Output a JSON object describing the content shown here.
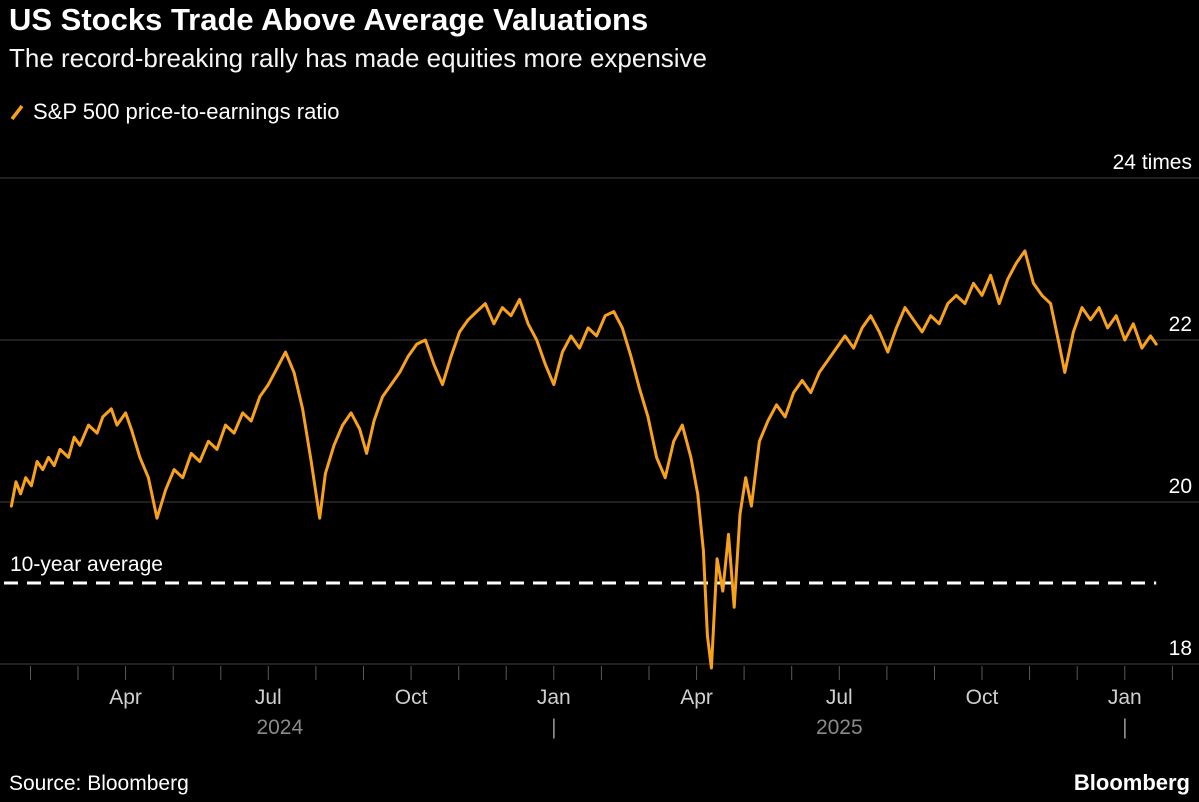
{
  "footer": {
    "brand": "Bloomberg"
  },
  "chart_data": {
    "type": "line",
    "title": "US Stocks Trade Above Average Valuations",
    "subtitle": "The record-breaking rally has made equities more expensive",
    "source": "Source: Bloomberg",
    "grid": "horizontal",
    "legend_position": "top-left",
    "x_domain": [
      2024.03,
      2026.13
    ],
    "x_ticks": [
      {
        "t": 2024.25,
        "label": "Apr"
      },
      {
        "t": 2024.5,
        "label": "Jul"
      },
      {
        "t": 2024.75,
        "label": "Oct"
      },
      {
        "t": 2025.0,
        "label": "Jan"
      },
      {
        "t": 2025.25,
        "label": "Apr"
      },
      {
        "t": 2025.5,
        "label": "Jul"
      },
      {
        "t": 2025.75,
        "label": "Oct"
      },
      {
        "t": 2026.0,
        "label": "Jan"
      }
    ],
    "year_row": [
      {
        "t": 2024.52,
        "label": "2024"
      },
      {
        "t": 2025.0,
        "label": "|"
      },
      {
        "t": 2025.5,
        "label": "2025"
      },
      {
        "t": 2026.0,
        "label": "|"
      }
    ],
    "y_axis": {
      "gridlines": [
        {
          "value": 24,
          "label": "24 times"
        },
        {
          "value": 22,
          "label": "22"
        },
        {
          "value": 20,
          "label": "20"
        },
        {
          "value": 18,
          "label": "18"
        }
      ]
    },
    "reference_line": {
      "value": 19.0,
      "label": "10-year average",
      "style": "dashed",
      "color": "#ffffff"
    },
    "colors": {
      "series_orange": "#F8A11B",
      "gridline": "#3f3f3f",
      "axis_tick": "#5a5a5a",
      "month_label": "#cfcfcf",
      "year_label": "#8a8a8a"
    },
    "series": [
      {
        "name": "S&P 500 price-to-earnings ratio",
        "color": "#F8A11B",
        "points": [
          [
            2024.05,
            19.95
          ],
          [
            2024.058,
            20.25
          ],
          [
            2024.066,
            20.1
          ],
          [
            2024.075,
            20.3
          ],
          [
            2024.085,
            20.2
          ],
          [
            2024.095,
            20.5
          ],
          [
            2024.105,
            20.4
          ],
          [
            2024.115,
            20.55
          ],
          [
            2024.125,
            20.45
          ],
          [
            2024.135,
            20.65
          ],
          [
            2024.15,
            20.55
          ],
          [
            2024.16,
            20.8
          ],
          [
            2024.17,
            20.7
          ],
          [
            2024.185,
            20.95
          ],
          [
            2024.2,
            20.85
          ],
          [
            2024.21,
            21.05
          ],
          [
            2024.225,
            21.15
          ],
          [
            2024.235,
            20.95
          ],
          [
            2024.25,
            21.1
          ],
          [
            2024.26,
            20.9
          ],
          [
            2024.275,
            20.55
          ],
          [
            2024.29,
            20.3
          ],
          [
            2024.305,
            19.8
          ],
          [
            2024.32,
            20.15
          ],
          [
            2024.335,
            20.4
          ],
          [
            2024.35,
            20.3
          ],
          [
            2024.365,
            20.6
          ],
          [
            2024.38,
            20.5
          ],
          [
            2024.395,
            20.75
          ],
          [
            2024.41,
            20.65
          ],
          [
            2024.425,
            20.95
          ],
          [
            2024.44,
            20.85
          ],
          [
            2024.455,
            21.1
          ],
          [
            2024.47,
            21.0
          ],
          [
            2024.485,
            21.3
          ],
          [
            2024.5,
            21.45
          ],
          [
            2024.515,
            21.65
          ],
          [
            2024.53,
            21.85
          ],
          [
            2024.545,
            21.6
          ],
          [
            2024.56,
            21.15
          ],
          [
            2024.575,
            20.5
          ],
          [
            2024.59,
            19.8
          ],
          [
            2024.6,
            20.35
          ],
          [
            2024.615,
            20.7
          ],
          [
            2024.63,
            20.95
          ],
          [
            2024.645,
            21.1
          ],
          [
            2024.66,
            20.9
          ],
          [
            2024.672,
            20.6
          ],
          [
            2024.685,
            21.0
          ],
          [
            2024.7,
            21.3
          ],
          [
            2024.715,
            21.45
          ],
          [
            2024.73,
            21.6
          ],
          [
            2024.745,
            21.8
          ],
          [
            2024.76,
            21.95
          ],
          [
            2024.775,
            22.0
          ],
          [
            2024.79,
            21.7
          ],
          [
            2024.805,
            21.45
          ],
          [
            2024.82,
            21.8
          ],
          [
            2024.835,
            22.1
          ],
          [
            2024.85,
            22.25
          ],
          [
            2024.865,
            22.35
          ],
          [
            2024.88,
            22.45
          ],
          [
            2024.895,
            22.2
          ],
          [
            2024.91,
            22.4
          ],
          [
            2024.925,
            22.3
          ],
          [
            2024.94,
            22.5
          ],
          [
            2024.955,
            22.2
          ],
          [
            2024.97,
            22.0
          ],
          [
            2024.985,
            21.7
          ],
          [
            2025.0,
            21.45
          ],
          [
            2025.015,
            21.85
          ],
          [
            2025.03,
            22.05
          ],
          [
            2025.045,
            21.9
          ],
          [
            2025.06,
            22.15
          ],
          [
            2025.075,
            22.05
          ],
          [
            2025.09,
            22.3
          ],
          [
            2025.105,
            22.35
          ],
          [
            2025.12,
            22.15
          ],
          [
            2025.135,
            21.8
          ],
          [
            2025.15,
            21.4
          ],
          [
            2025.165,
            21.05
          ],
          [
            2025.18,
            20.55
          ],
          [
            2025.195,
            20.3
          ],
          [
            2025.21,
            20.75
          ],
          [
            2025.225,
            20.95
          ],
          [
            2025.24,
            20.55
          ],
          [
            2025.252,
            20.1
          ],
          [
            2025.262,
            19.4
          ],
          [
            2025.269,
            18.35
          ],
          [
            2025.276,
            17.95
          ],
          [
            2025.286,
            19.3
          ],
          [
            2025.296,
            18.9
          ],
          [
            2025.306,
            19.6
          ],
          [
            2025.316,
            18.7
          ],
          [
            2025.326,
            19.85
          ],
          [
            2025.336,
            20.3
          ],
          [
            2025.346,
            19.95
          ],
          [
            2025.36,
            20.75
          ],
          [
            2025.375,
            21.0
          ],
          [
            2025.39,
            21.2
          ],
          [
            2025.405,
            21.05
          ],
          [
            2025.42,
            21.35
          ],
          [
            2025.435,
            21.5
          ],
          [
            2025.45,
            21.35
          ],
          [
            2025.465,
            21.6
          ],
          [
            2025.48,
            21.75
          ],
          [
            2025.495,
            21.9
          ],
          [
            2025.51,
            22.05
          ],
          [
            2025.525,
            21.9
          ],
          [
            2025.54,
            22.15
          ],
          [
            2025.555,
            22.3
          ],
          [
            2025.57,
            22.1
          ],
          [
            2025.585,
            21.85
          ],
          [
            2025.6,
            22.15
          ],
          [
            2025.615,
            22.4
          ],
          [
            2025.63,
            22.25
          ],
          [
            2025.645,
            22.1
          ],
          [
            2025.66,
            22.3
          ],
          [
            2025.675,
            22.2
          ],
          [
            2025.69,
            22.45
          ],
          [
            2025.705,
            22.55
          ],
          [
            2025.72,
            22.45
          ],
          [
            2025.735,
            22.7
          ],
          [
            2025.75,
            22.55
          ],
          [
            2025.765,
            22.8
          ],
          [
            2025.78,
            22.45
          ],
          [
            2025.795,
            22.75
          ],
          [
            2025.81,
            22.95
          ],
          [
            2025.825,
            23.1
          ],
          [
            2025.84,
            22.7
          ],
          [
            2025.855,
            22.55
          ],
          [
            2025.87,
            22.45
          ],
          [
            2025.885,
            21.95
          ],
          [
            2025.895,
            21.6
          ],
          [
            2025.91,
            22.1
          ],
          [
            2025.925,
            22.4
          ],
          [
            2025.94,
            22.25
          ],
          [
            2025.955,
            22.4
          ],
          [
            2025.97,
            22.15
          ],
          [
            2025.985,
            22.3
          ],
          [
            2026.0,
            22.0
          ],
          [
            2026.015,
            22.2
          ],
          [
            2026.03,
            21.9
          ],
          [
            2026.045,
            22.05
          ],
          [
            2026.055,
            21.95
          ]
        ]
      }
    ]
  }
}
